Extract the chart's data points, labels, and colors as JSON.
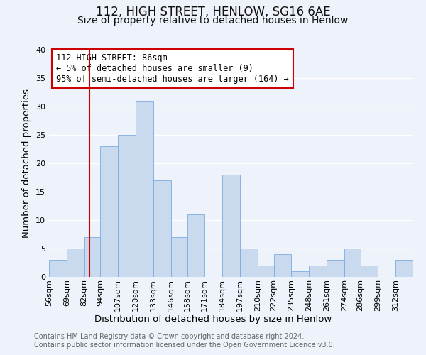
{
  "title": "112, HIGH STREET, HENLOW, SG16 6AE",
  "subtitle": "Size of property relative to detached houses in Henlow",
  "xlabel": "Distribution of detached houses by size in Henlow",
  "ylabel": "Number of detached properties",
  "footer1": "Contains HM Land Registry data © Crown copyright and database right 2024.",
  "footer2": "Contains public sector information licensed under the Open Government Licence v3.0.",
  "annotation_title": "112 HIGH STREET: 86sqm",
  "annotation_line2": "← 5% of detached houses are smaller (9)",
  "annotation_line3": "95% of semi-detached houses are larger (164) →",
  "bar_color": "#c9d9ee",
  "bar_edge_color": "#7aabe0",
  "vline_x": 86,
  "vline_color": "#cc0000",
  "categories": [
    "56sqm",
    "69sqm",
    "82sqm",
    "94sqm",
    "107sqm",
    "120sqm",
    "133sqm",
    "146sqm",
    "158sqm",
    "171sqm",
    "184sqm",
    "197sqm",
    "210sqm",
    "222sqm",
    "235sqm",
    "248sqm",
    "261sqm",
    "274sqm",
    "286sqm",
    "299sqm",
    "312sqm"
  ],
  "bin_edges": [
    56,
    69,
    82,
    94,
    107,
    120,
    133,
    146,
    158,
    171,
    184,
    197,
    210,
    222,
    235,
    248,
    261,
    274,
    286,
    299,
    312,
    325
  ],
  "values": [
    3,
    5,
    7,
    23,
    25,
    31,
    17,
    7,
    11,
    0,
    18,
    5,
    2,
    4,
    1,
    2,
    3,
    5,
    2,
    0,
    3
  ],
  "ylim": [
    0,
    40
  ],
  "yticks": [
    0,
    5,
    10,
    15,
    20,
    25,
    30,
    35,
    40
  ],
  "background_color": "#eef2fa",
  "plot_bg_color": "#eef2fa",
  "grid_color": "#ffffff",
  "title_fontsize": 12,
  "subtitle_fontsize": 10,
  "axis_label_fontsize": 9.5,
  "tick_fontsize": 8,
  "footer_fontsize": 7,
  "annotation_fontsize": 8.5
}
